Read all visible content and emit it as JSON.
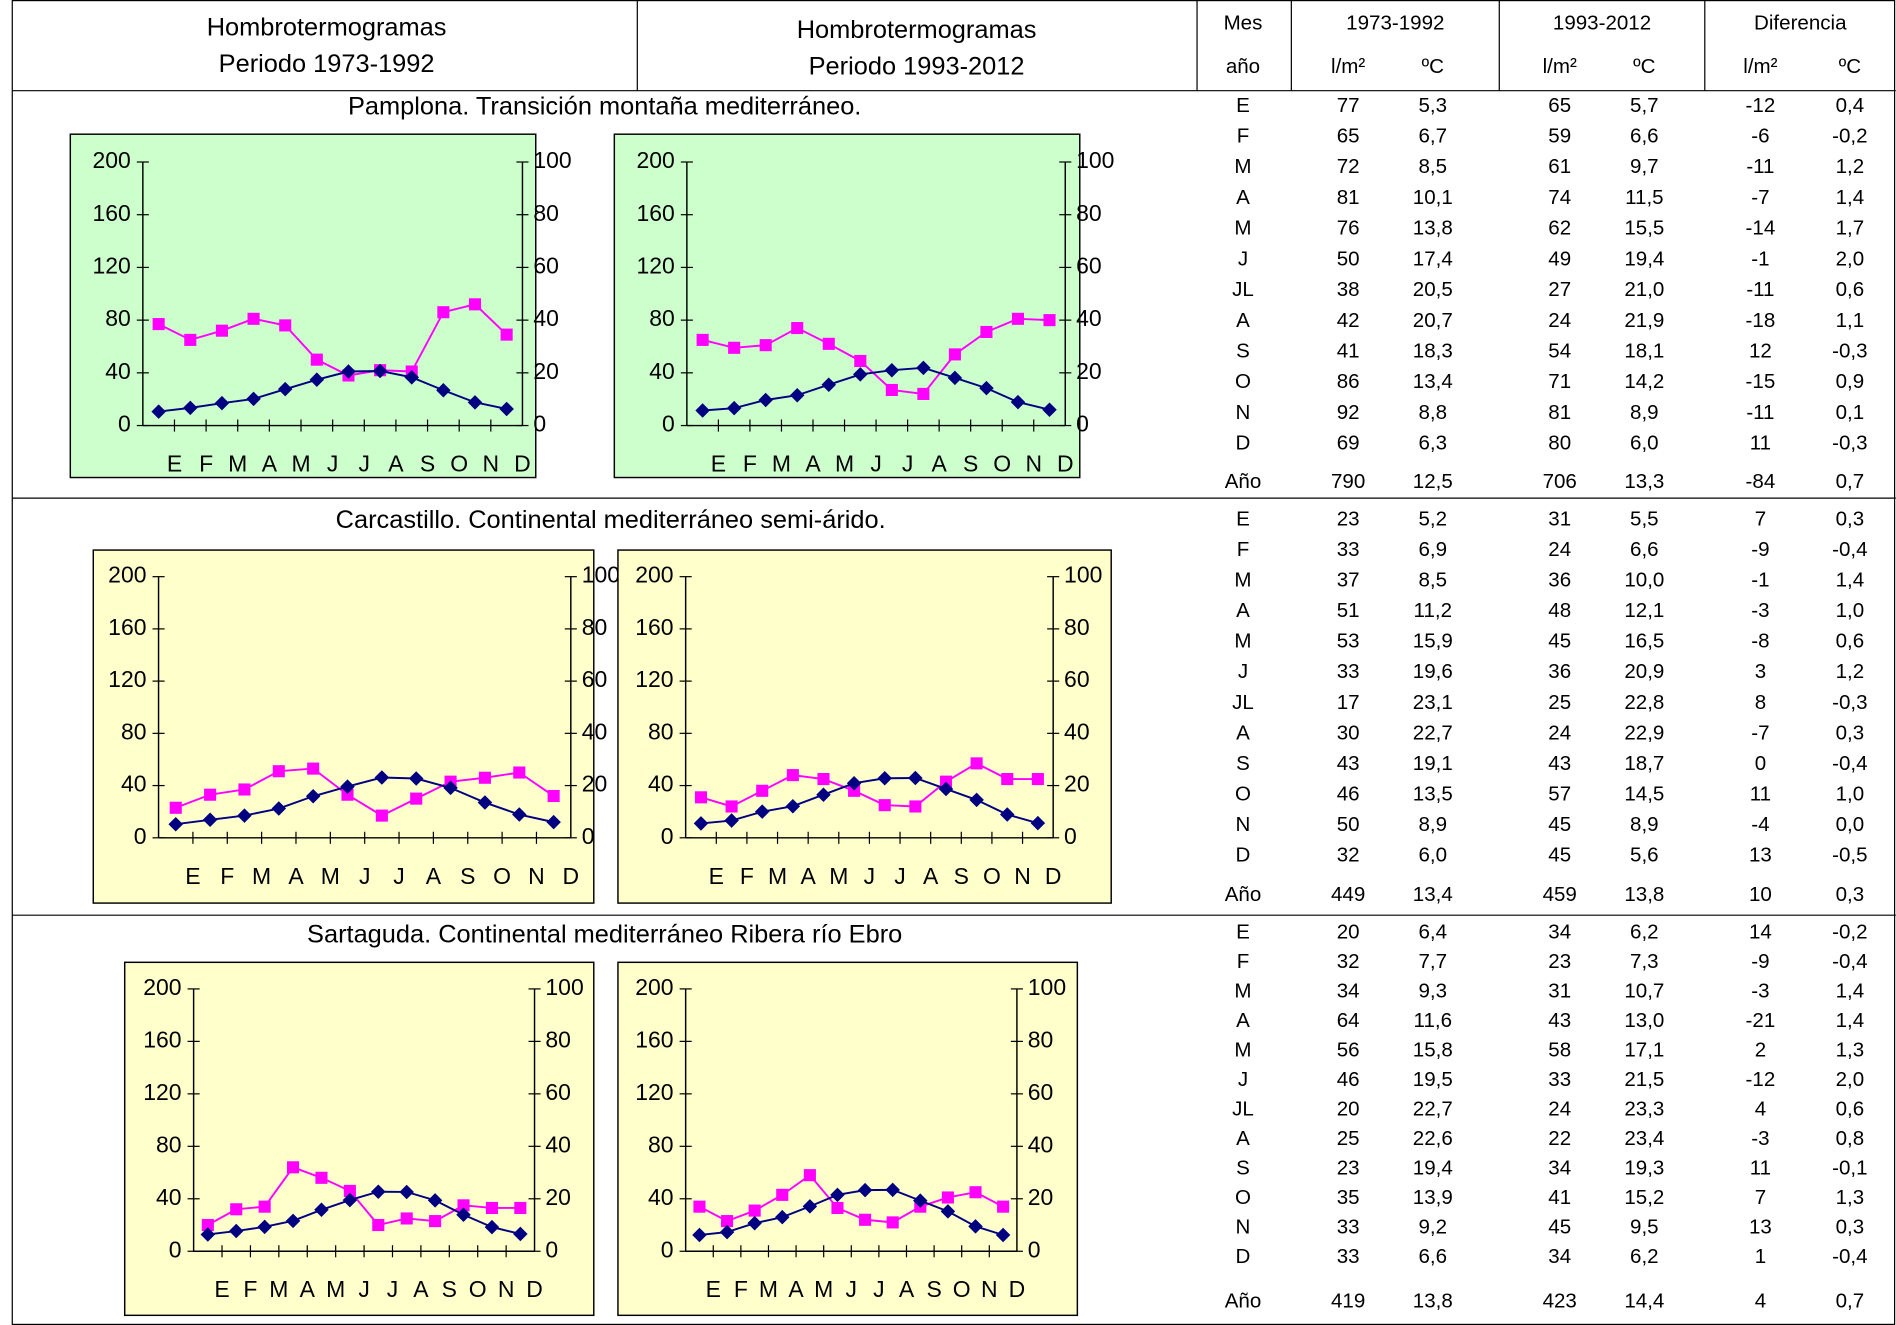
{
  "header": {
    "left": [
      "Hombrotermogramas",
      "Periodo 1973-1992"
    ],
    "middle": [
      "Hombrotermogramas",
      "Periodo 1993-2012"
    ],
    "mes": "Mes",
    "anio": "año",
    "periods": [
      "1973-1992",
      "1993-2012",
      "Diferencia"
    ],
    "units": [
      "l/m²",
      "ºC",
      "l/m²",
      "ºC",
      "l/m²",
      "ºC"
    ],
    "period1_color": "#993300",
    "red_color": "#ff0000"
  },
  "sections": [
    {
      "title": "Pamplona. Transición montaña mediterráneo.",
      "rows": [
        [
          "E",
          "77",
          "5,3",
          "65",
          "5,7",
          "-12",
          "0,4"
        ],
        [
          "F",
          "65",
          "6,7",
          "59",
          "6,6",
          "-6",
          "-0,2"
        ],
        [
          "M",
          "72",
          "8,5",
          "61",
          "9,7",
          "-11",
          "1,2"
        ],
        [
          "A",
          "81",
          "10,1",
          "74",
          "11,5",
          "-7",
          "1,4"
        ],
        [
          "M",
          "76",
          "13,8",
          "62",
          "15,5",
          "-14",
          "1,7"
        ],
        [
          "J",
          "50",
          "17,4",
          "49",
          "19,4",
          "-1",
          "2,0"
        ],
        [
          "JL",
          "38",
          "20,5",
          "27",
          "21,0",
          "-11",
          "0,6"
        ],
        [
          "A",
          "42",
          "20,7",
          "24",
          "21,9",
          "-18",
          "1,1"
        ],
        [
          "S",
          "41",
          "18,3",
          "54",
          "18,1",
          "12",
          "-0,3"
        ],
        [
          "O",
          "86",
          "13,4",
          "71",
          "14,2",
          "-15",
          "0,9"
        ],
        [
          "N",
          "92",
          "8,8",
          "81",
          "8,9",
          "-11",
          "0,1"
        ],
        [
          "D",
          "69",
          "6,3",
          "80",
          "6,0",
          "11",
          "-0,3"
        ]
      ],
      "diff_red": [
        [
          true,
          true
        ],
        [
          true,
          false
        ],
        [
          true,
          true
        ],
        [
          true,
          true
        ],
        [
          true,
          true
        ],
        [
          true,
          true
        ],
        [
          true,
          true
        ],
        [
          true,
          true
        ],
        [
          false,
          false
        ],
        [
          true,
          true
        ],
        [
          true,
          true
        ],
        [
          false,
          false
        ]
      ],
      "total": [
        "Año",
        "790",
        "12,5",
        "706",
        "13,3",
        "-84",
        "0,7"
      ],
      "total_red": [
        true,
        true
      ]
    },
    {
      "title": "Carcastillo. Continental mediterráneo semi-árido.",
      "rows": [
        [
          "E",
          "23",
          "5,2",
          "31",
          "5,5",
          "7",
          "0,3"
        ],
        [
          "F",
          "33",
          "6,9",
          "24",
          "6,6",
          "-9",
          "-0,4"
        ],
        [
          "M",
          "37",
          "8,5",
          "36",
          "10,0",
          "-1",
          "1,4"
        ],
        [
          "A",
          "51",
          "11,2",
          "48",
          "12,1",
          "-3",
          "1,0"
        ],
        [
          "M",
          "53",
          "15,9",
          "45",
          "16,5",
          "-8",
          "0,6"
        ],
        [
          "J",
          "33",
          "19,6",
          "36",
          "20,9",
          "3",
          "1,2"
        ],
        [
          "JL",
          "17",
          "23,1",
          "25",
          "22,8",
          "8",
          "-0,3"
        ],
        [
          "A",
          "30",
          "22,7",
          "24",
          "22,9",
          "-7",
          "0,3"
        ],
        [
          "S",
          "43",
          "19,1",
          "43",
          "18,7",
          "0",
          "-0,4"
        ],
        [
          "O",
          "46",
          "13,5",
          "57",
          "14,5",
          "11",
          "1,0"
        ],
        [
          "N",
          "50",
          "8,9",
          "45",
          "8,9",
          "-4",
          "0,0"
        ],
        [
          "D",
          "32",
          "6,0",
          "45",
          "5,6",
          "13",
          "-0,5"
        ]
      ],
      "diff_red": [
        [
          false,
          true
        ],
        [
          true,
          false
        ],
        [
          true,
          true
        ],
        [
          true,
          true
        ],
        [
          true,
          true
        ],
        [
          false,
          true
        ],
        [
          false,
          false
        ],
        [
          true,
          true
        ],
        [
          true,
          false
        ],
        [
          false,
          true
        ],
        [
          true,
          false
        ],
        [
          false,
          false
        ]
      ],
      "total": [
        "Año",
        "449",
        "13,4",
        "459",
        "13,8",
        "10",
        "0,3"
      ],
      "total_red": [
        false,
        true
      ]
    },
    {
      "title": "Sartaguda. Continental mediterráneo Ribera río Ebro",
      "rows": [
        [
          "E",
          "20",
          "6,4",
          "34",
          "6,2",
          "14",
          "-0,2"
        ],
        [
          "F",
          "32",
          "7,7",
          "23",
          "7,3",
          "-9",
          "-0,4"
        ],
        [
          "M",
          "34",
          "9,3",
          "31",
          "10,7",
          "-3",
          "1,4"
        ],
        [
          "A",
          "64",
          "11,6",
          "43",
          "13,0",
          "-21",
          "1,4"
        ],
        [
          "M",
          "56",
          "15,8",
          "58",
          "17,1",
          "2",
          "1,3"
        ],
        [
          "J",
          "46",
          "19,5",
          "33",
          "21,5",
          "-12",
          "2,0"
        ],
        [
          "JL",
          "20",
          "22,7",
          "24",
          "23,3",
          "4",
          "0,6"
        ],
        [
          "A",
          "25",
          "22,6",
          "22",
          "23,4",
          "-3",
          "0,8"
        ],
        [
          "S",
          "23",
          "19,4",
          "34",
          "19,3",
          "11",
          "-0,1"
        ],
        [
          "O",
          "35",
          "13,9",
          "41",
          "15,2",
          "7",
          "1,3"
        ],
        [
          "N",
          "33",
          "9,2",
          "45",
          "9,5",
          "13",
          "0,3"
        ],
        [
          "D",
          "33",
          "6,6",
          "34",
          "6,2",
          "1",
          "-0,4"
        ]
      ],
      "diff_red": [
        [
          false,
          false
        ],
        [
          true,
          false
        ],
        [
          true,
          true
        ],
        [
          true,
          true
        ],
        [
          false,
          true
        ],
        [
          true,
          true
        ],
        [
          false,
          true
        ],
        [
          true,
          true
        ],
        [
          false,
          false
        ],
        [
          false,
          true
        ],
        [
          false,
          true
        ],
        [
          false,
          false
        ]
      ],
      "total": [
        "Año",
        "419",
        "13,8",
        "423",
        "14,4",
        "4",
        "0,7"
      ],
      "total_red": [
        false,
        true
      ]
    }
  ],
  "chart_data": [
    {
      "type": "line",
      "background": "#ccffcc",
      "categories": [
        "E",
        "F",
        "M",
        "A",
        "M",
        "J",
        "J",
        "A",
        "S",
        "O",
        "N",
        "D"
      ],
      "ylim": [
        0,
        200
      ],
      "yticks": [
        0,
        40,
        80,
        120,
        160,
        200
      ],
      "y2lim": [
        0,
        100
      ],
      "y2ticks": [
        0,
        20,
        40,
        60,
        80,
        100
      ],
      "series": [
        {
          "color": "#ff00ff",
          "marker": "square",
          "values": [
            77,
            65,
            72,
            81,
            76,
            50,
            38,
            42,
            41,
            86,
            92,
            69
          ]
        },
        {
          "color": "#000080",
          "marker": "diamond",
          "axis": "y2",
          "values": [
            5.3,
            6.7,
            8.5,
            10.1,
            13.8,
            17.4,
            20.5,
            20.7,
            18.3,
            13.4,
            8.8,
            6.3
          ]
        }
      ]
    },
    {
      "type": "line",
      "background": "#ccffcc",
      "categories": [
        "E",
        "F",
        "M",
        "A",
        "M",
        "J",
        "J",
        "A",
        "S",
        "O",
        "N",
        "D"
      ],
      "ylim": [
        0,
        200
      ],
      "yticks": [
        0,
        40,
        80,
        120,
        160,
        200
      ],
      "y2lim": [
        0,
        100
      ],
      "y2ticks": [
        0,
        20,
        40,
        60,
        80,
        100
      ],
      "series": [
        {
          "color": "#ff00ff",
          "marker": "square",
          "values": [
            65,
            59,
            61,
            74,
            62,
            49,
            27,
            24,
            54,
            71,
            81,
            80
          ]
        },
        {
          "color": "#000080",
          "marker": "diamond",
          "axis": "y2",
          "values": [
            5.7,
            6.6,
            9.7,
            11.5,
            15.5,
            19.4,
            21.0,
            21.9,
            18.1,
            14.2,
            8.9,
            6.0
          ]
        }
      ]
    },
    {
      "type": "line",
      "background": "#ffffcc",
      "categories": [
        "E",
        "F",
        "M",
        "A",
        "M",
        "J",
        "J",
        "A",
        "S",
        "O",
        "N",
        "D"
      ],
      "ylim": [
        0,
        200
      ],
      "yticks": [
        0,
        40,
        80,
        120,
        160,
        200
      ],
      "y2lim": [
        0,
        100
      ],
      "y2ticks": [
        0,
        20,
        40,
        60,
        80,
        100
      ],
      "series": [
        {
          "color": "#ff00ff",
          "marker": "square",
          "values": [
            23,
            33,
            37,
            51,
            53,
            33,
            17,
            30,
            43,
            46,
            50,
            32
          ]
        },
        {
          "color": "#000080",
          "marker": "diamond",
          "axis": "y2",
          "values": [
            5.2,
            6.9,
            8.5,
            11.2,
            15.9,
            19.6,
            23.1,
            22.7,
            19.1,
            13.5,
            8.9,
            6.0
          ]
        }
      ]
    },
    {
      "type": "line",
      "background": "#ffffcc",
      "categories": [
        "E",
        "F",
        "M",
        "A",
        "M",
        "J",
        "J",
        "A",
        "S",
        "O",
        "N",
        "D"
      ],
      "ylim": [
        0,
        200
      ],
      "yticks": [
        0,
        40,
        80,
        120,
        160,
        200
      ],
      "y2lim": [
        0,
        100
      ],
      "y2ticks": [
        0,
        20,
        40,
        60,
        80,
        100
      ],
      "series": [
        {
          "color": "#ff00ff",
          "marker": "square",
          "values": [
            31,
            24,
            36,
            48,
            45,
            36,
            25,
            24,
            43,
            57,
            45,
            45
          ]
        },
        {
          "color": "#000080",
          "marker": "diamond",
          "axis": "y2",
          "values": [
            5.5,
            6.6,
            10.0,
            12.1,
            16.5,
            20.9,
            22.8,
            22.9,
            18.7,
            14.5,
            8.9,
            5.6
          ]
        }
      ]
    },
    {
      "type": "line",
      "background": "#ffffcc",
      "categories": [
        "E",
        "F",
        "M",
        "A",
        "M",
        "J",
        "J",
        "A",
        "S",
        "O",
        "N",
        "D"
      ],
      "ylim": [
        0,
        200
      ],
      "yticks": [
        0,
        40,
        80,
        120,
        160,
        200
      ],
      "y2lim": [
        0,
        100
      ],
      "y2ticks": [
        0,
        20,
        40,
        60,
        80,
        100
      ],
      "series": [
        {
          "color": "#ff00ff",
          "marker": "square",
          "values": [
            20,
            32,
            34,
            64,
            56,
            46,
            20,
            25,
            23,
            35,
            33,
            33
          ]
        },
        {
          "color": "#000080",
          "marker": "diamond",
          "axis": "y2",
          "values": [
            6.4,
            7.7,
            9.3,
            11.6,
            15.8,
            19.5,
            22.7,
            22.6,
            19.4,
            13.9,
            9.2,
            6.6
          ]
        }
      ]
    },
    {
      "type": "line",
      "background": "#ffffcc",
      "categories": [
        "E",
        "F",
        "M",
        "A",
        "M",
        "J",
        "J",
        "A",
        "S",
        "O",
        "N",
        "D"
      ],
      "ylim": [
        0,
        200
      ],
      "yticks": [
        0,
        40,
        80,
        120,
        160,
        200
      ],
      "y2lim": [
        0,
        100
      ],
      "y2ticks": [
        0,
        20,
        40,
        60,
        80,
        100
      ],
      "series": [
        {
          "color": "#ff00ff",
          "marker": "square",
          "values": [
            34,
            23,
            31,
            43,
            58,
            33,
            24,
            22,
            34,
            41,
            45,
            34
          ]
        },
        {
          "color": "#000080",
          "marker": "diamond",
          "axis": "y2",
          "values": [
            6.2,
            7.3,
            10.7,
            13.0,
            17.1,
            21.5,
            23.3,
            23.4,
            19.3,
            15.2,
            9.5,
            6.2
          ]
        }
      ]
    }
  ]
}
